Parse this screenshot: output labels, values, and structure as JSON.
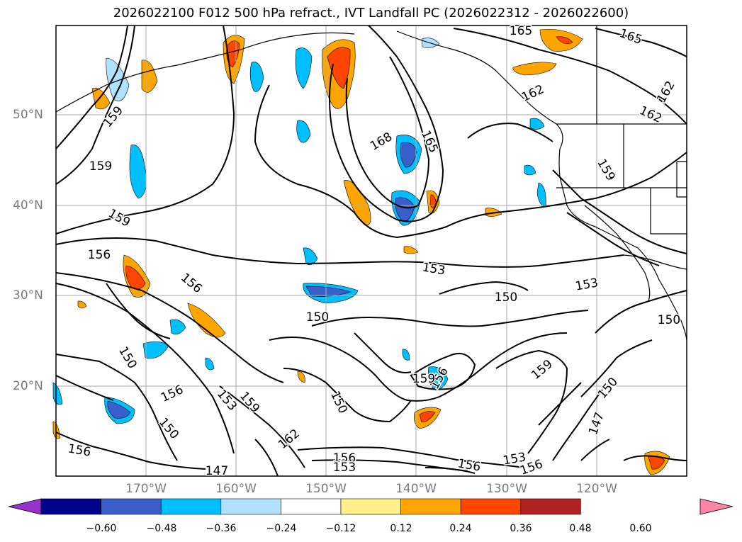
{
  "title": "2026022100 F012 500 hPa refract., IVT Landfall PC (2026022312 - 2026022600)",
  "map": {
    "lon_labels": [
      "170°W",
      "160°W",
      "150°W",
      "140°W",
      "130°W",
      "120°W"
    ],
    "lat_labels": [
      "50°N",
      "40°N",
      "30°N",
      "20°N"
    ],
    "contour_labels": [
      "165",
      "165",
      "162",
      "162",
      "162",
      "159",
      "159",
      "168",
      "165",
      "159",
      "159",
      "156",
      "156",
      "153",
      "153",
      "150",
      "150",
      "150",
      "150",
      "156",
      "150",
      "156",
      "153",
      "159",
      "159",
      "162",
      "159",
      "159",
      "156",
      "150",
      "147",
      "150",
      "147",
      "156",
      "153",
      "156",
      "153",
      "156"
    ]
  },
  "colorbar": {
    "colors": [
      "#9932cc",
      "#00008b",
      "#3a5fcd",
      "#00bfff",
      "#b0e2ff",
      "#ffffff",
      "#fff08c",
      "#ffa500",
      "#ff4500",
      "#b22222",
      "#ff85a7"
    ],
    "ticks": [
      "−0.60",
      "−0.48",
      "−0.36",
      "−0.24",
      "−0.12",
      "0.12",
      "0.24",
      "0.36",
      "0.48",
      "0.60"
    ]
  }
}
